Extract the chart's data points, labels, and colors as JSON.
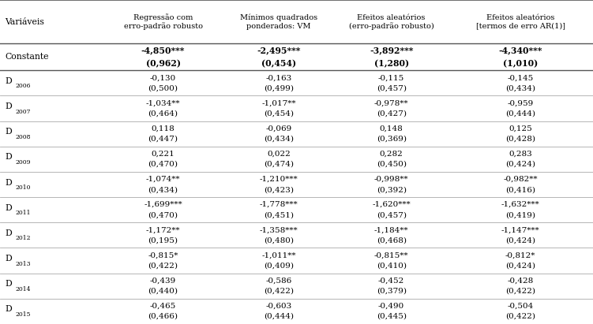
{
  "col_headers": [
    "Variáveis",
    "Regressão com\nerro-padrão robusto",
    "Mínimos quadrados\nponderados: VM",
    "Efeitos aleatórios\n(erro-padrão robusto)",
    "Efeitos aleatórios\n[termos de erro AR(1)]"
  ],
  "rows": [
    {
      "label": "Constante",
      "label_sub": "",
      "values": [
        [
          "-4,850***",
          "(0,962)"
        ],
        [
          "-2,495***",
          "(0,454)"
        ],
        [
          "-3,892***",
          "(1,280)"
        ],
        [
          "-4,340***",
          "(1,010)"
        ]
      ],
      "bold": true
    },
    {
      "label": "D",
      "label_sub": "2006",
      "values": [
        [
          "-0,130",
          "(0,500)"
        ],
        [
          "-0,163",
          "(0,499)"
        ],
        [
          "-0,115",
          "(0,457)"
        ],
        [
          "-0,145",
          "(0,434)"
        ]
      ],
      "bold": false
    },
    {
      "label": "D",
      "label_sub": "2007",
      "values": [
        [
          "-1,034**",
          "(0,464)"
        ],
        [
          "-1,017**",
          "(0,454)"
        ],
        [
          "-0,978**",
          "(0,427)"
        ],
        [
          "-0,959",
          "(0,444)"
        ]
      ],
      "bold": false
    },
    {
      "label": "D",
      "label_sub": "2008",
      "values": [
        [
          "0,118",
          "(0,447)"
        ],
        [
          "-0,069",
          "(0,434)"
        ],
        [
          "0,148",
          "(0,369)"
        ],
        [
          "0,125",
          "(0,428)"
        ]
      ],
      "bold": false
    },
    {
      "label": "D",
      "label_sub": "2009",
      "values": [
        [
          "0,221",
          "(0,470)"
        ],
        [
          "0,022",
          "(0,474)"
        ],
        [
          "0,282",
          "(0,450)"
        ],
        [
          "0,283",
          "(0,424)"
        ]
      ],
      "bold": false
    },
    {
      "label": "D",
      "label_sub": "2010",
      "values": [
        [
          "-1,074**",
          "(0,434)"
        ],
        [
          "-1,210***",
          "(0,423)"
        ],
        [
          "-0,998**",
          "(0,392)"
        ],
        [
          "-0,982**",
          "(0,416)"
        ]
      ],
      "bold": false
    },
    {
      "label": "D",
      "label_sub": "2011",
      "values": [
        [
          "-1,699***",
          "(0,470)"
        ],
        [
          "-1,778***",
          "(0,451)"
        ],
        [
          "-1,620***",
          "(0,457)"
        ],
        [
          "-1,632***",
          "(0,419)"
        ]
      ],
      "bold": false
    },
    {
      "label": "D",
      "label_sub": "2012",
      "values": [
        [
          "-1,172**",
          "(0,195)"
        ],
        [
          "-1,358***",
          "(0,480)"
        ],
        [
          "-1,184**",
          "(0,468)"
        ],
        [
          "-1,147***",
          "(0,424)"
        ]
      ],
      "bold": false
    },
    {
      "label": "D",
      "label_sub": "2013",
      "values": [
        [
          "-0,815*",
          "(0,422)"
        ],
        [
          "-1,011**",
          "(0,409)"
        ],
        [
          "-0,815**",
          "(0,410)"
        ],
        [
          "-0,812*",
          "(0,424)"
        ]
      ],
      "bold": false
    },
    {
      "label": "D",
      "label_sub": "2014",
      "values": [
        [
          "-0,439",
          "(0,440)"
        ],
        [
          "-0,586",
          "(0,422)"
        ],
        [
          "-0,452",
          "(0,379)"
        ],
        [
          "-0,428",
          "(0,422)"
        ]
      ],
      "bold": false
    },
    {
      "label": "D",
      "label_sub": "2015",
      "values": [
        [
          "-0,465",
          "(0,466)"
        ],
        [
          "-0,603",
          "(0,444)"
        ],
        [
          "-0,490",
          "(0,445)"
        ],
        [
          "-0,504",
          "(0,422)"
        ]
      ],
      "bold": false
    }
  ],
  "bg_color": "#ffffff",
  "text_color": "#000000",
  "line_color": "#aaaaaa",
  "header_line_color": "#555555"
}
